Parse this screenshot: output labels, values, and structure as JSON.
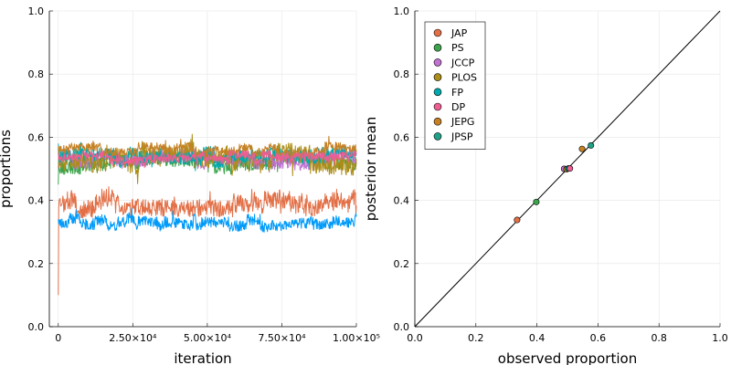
{
  "chart_data": [
    {
      "type": "line",
      "xlabel": "iteration",
      "ylabel": "proportions",
      "xlim": [
        -3000,
        100000
      ],
      "ylim": [
        0,
        1
      ],
      "x_ticks": [
        {
          "value": 0,
          "label": "0"
        },
        {
          "value": 25000,
          "label": "2.50×10⁴"
        },
        {
          "value": 50000,
          "label": "5.00×10⁴"
        },
        {
          "value": 75000,
          "label": "7.50×10⁴"
        },
        {
          "value": 100000,
          "label": "1.00×10⁵"
        }
      ],
      "y_ticks": [
        {
          "value": 0.0,
          "label": "0.0"
        },
        {
          "value": 0.2,
          "label": "0.2"
        },
        {
          "value": 0.4,
          "label": "0.4"
        },
        {
          "value": 0.6,
          "label": "0.6"
        },
        {
          "value": 0.8,
          "label": "0.8"
        },
        {
          "value": 1.0,
          "label": "1.0"
        }
      ],
      "grid": true,
      "series": [
        {
          "color": "#e26f46",
          "initial": 0.1,
          "center": 0.39,
          "amplitude": 0.04,
          "seed": 11
        },
        {
          "color": "#009af9",
          "initial": 0.34,
          "center": 0.33,
          "amplitude": 0.025,
          "seed": 23
        },
        {
          "color": "#3da44d",
          "initial": 0.45,
          "center": 0.52,
          "amplitude": 0.03,
          "seed": 37
        },
        {
          "color": "#c271d2",
          "initial": 0.5,
          "center": 0.53,
          "amplitude": 0.03,
          "seed": 41
        },
        {
          "color": "#ac8d18",
          "initial": 0.57,
          "center": 0.53,
          "amplitude": 0.045,
          "seed": 53
        },
        {
          "color": "#00a9ad",
          "initial": 0.58,
          "center": 0.54,
          "amplitude": 0.03,
          "seed": 61
        },
        {
          "color": "#c68125",
          "initial": 0.56,
          "center": 0.56,
          "amplitude": 0.02,
          "seed": 73
        },
        {
          "color": "#ed5d92",
          "initial": 0.55,
          "center": 0.535,
          "amplitude": 0.02,
          "seed": 89
        }
      ]
    },
    {
      "type": "scatter",
      "xlabel": "observed proportion",
      "ylabel": "posterior mean",
      "xlim": [
        0,
        1
      ],
      "ylim": [
        0,
        1
      ],
      "x_ticks": [
        {
          "value": 0.0,
          "label": "0.0"
        },
        {
          "value": 0.2,
          "label": "0.2"
        },
        {
          "value": 0.4,
          "label": "0.4"
        },
        {
          "value": 0.6,
          "label": "0.6"
        },
        {
          "value": 0.8,
          "label": "0.8"
        },
        {
          "value": 1.0,
          "label": "1.0"
        }
      ],
      "y_ticks": [
        {
          "value": 0.0,
          "label": "0.0"
        },
        {
          "value": 0.2,
          "label": "0.2"
        },
        {
          "value": 0.4,
          "label": "0.4"
        },
        {
          "value": 0.6,
          "label": "0.6"
        },
        {
          "value": 0.8,
          "label": "0.8"
        },
        {
          "value": 1.0,
          "label": "1.0"
        }
      ],
      "grid": true,
      "reference_line": {
        "x": [
          0,
          1
        ],
        "y": [
          0,
          1
        ],
        "color": "#000000"
      },
      "legend_position": "top-left",
      "series": [
        {
          "name": "JAP",
          "color": "#e26f46",
          "x": 0.335,
          "y": 0.338
        },
        {
          "name": "PS",
          "color": "#3da44d",
          "x": 0.398,
          "y": 0.395
        },
        {
          "name": "JCCP",
          "color": "#c271d2",
          "x": 0.489,
          "y": 0.5
        },
        {
          "name": "PLOS",
          "color": "#ac8d18",
          "x": 0.497,
          "y": 0.499
        },
        {
          "name": "FP",
          "color": "#00a9ad",
          "x": 0.503,
          "y": 0.501
        },
        {
          "name": "DP",
          "color": "#ed5d92",
          "x": 0.508,
          "y": 0.501
        },
        {
          "name": "JEPG",
          "color": "#c68125",
          "x": 0.548,
          "y": 0.563
        },
        {
          "name": "JPSP",
          "color": "#1fa187",
          "x": 0.577,
          "y": 0.574
        }
      ]
    }
  ]
}
